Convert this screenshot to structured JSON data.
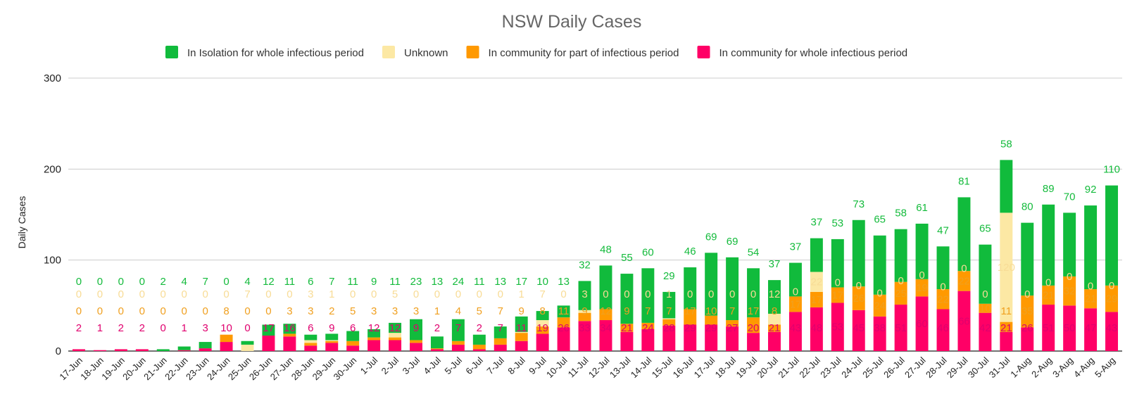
{
  "chart_data": {
    "type": "bar",
    "stacked": true,
    "title": "NSW Daily Cases",
    "xlabel": "",
    "ylabel": "Daily Cases",
    "ylim": [
      0,
      300
    ],
    "yticks": [
      0,
      100,
      200,
      300
    ],
    "grid": true,
    "legend_position": "top",
    "categories": [
      "17-Jun",
      "18-Jun",
      "19-Jun",
      "20-Jun",
      "21-Jun",
      "22-Jun",
      "23-Jun",
      "24-Jun",
      "25-Jun",
      "26-Jun",
      "27-Jun",
      "28-Jun",
      "29-Jun",
      "30-Jun",
      "1-Jul",
      "2-Jul",
      "3-Jul",
      "4-Jul",
      "5-Jul",
      "6-Jul",
      "7-Jul",
      "8-Jul",
      "9-Jul",
      "10-Jul",
      "11-Jul",
      "12-Jul",
      "13-Jul",
      "14-Jul",
      "15-Jul",
      "16-Jul",
      "17-Jul",
      "18-Jul",
      "19-Jul",
      "20-Jul",
      "21-Jul",
      "22-Jul",
      "23-Jul",
      "24-Jul",
      "25-Jul",
      "26-Jul",
      "27-Jul",
      "28-Jul",
      "29-Jul",
      "30-Jul",
      "31-Jul",
      "1-Aug",
      "2-Aug",
      "3-Aug",
      "4-Aug",
      "5-Aug"
    ],
    "series": [
      {
        "name": "In community for whole infectious period",
        "color": "#ff0066",
        "label_color": "#e0006e",
        "values": [
          2,
          1,
          2,
          2,
          0,
          1,
          3,
          10,
          0,
          17,
          16,
          6,
          9,
          6,
          12,
          12,
          9,
          2,
          7,
          2,
          7,
          11,
          19,
          26,
          33,
          34,
          21,
          24,
          28,
          29,
          29,
          27,
          20,
          21,
          43,
          48,
          53,
          45,
          38,
          51,
          60,
          46,
          66,
          42,
          21,
          26,
          51,
          50,
          47,
          43
        ]
      },
      {
        "name": "In community for part of infectious period",
        "color": "#ff9900",
        "label_color": "#f0a020",
        "values": [
          0,
          0,
          0,
          0,
          0,
          0,
          0,
          8,
          0,
          0,
          3,
          3,
          2,
          5,
          3,
          3,
          3,
          1,
          4,
          5,
          7,
          9,
          8,
          11,
          9,
          12,
          9,
          7,
          7,
          17,
          10,
          7,
          17,
          8,
          17,
          17,
          17,
          26,
          24,
          25,
          19,
          22,
          22,
          10,
          11,
          35,
          21,
          32,
          21,
          29
        ]
      },
      {
        "name": "Unknown",
        "color": "#fce8a4",
        "label_color": "#f8dc96",
        "values": [
          0,
          0,
          0,
          0,
          0,
          0,
          0,
          0,
          7,
          0,
          0,
          3,
          1,
          0,
          0,
          5,
          0,
          0,
          0,
          0,
          0,
          1,
          7,
          0,
          3,
          0,
          0,
          0,
          1,
          0,
          0,
          0,
          0,
          12,
          0,
          22,
          0,
          0,
          0,
          0,
          0,
          0,
          0,
          0,
          120,
          0,
          0,
          0,
          0,
          0
        ]
      },
      {
        "name": "In Isolation for whole infectious period",
        "color": "#11bb3c",
        "label_color": "#14bb3c",
        "values": [
          0,
          0,
          0,
          0,
          2,
          4,
          7,
          0,
          4,
          12,
          11,
          6,
          7,
          11,
          9,
          11,
          23,
          13,
          24,
          11,
          13,
          17,
          10,
          13,
          32,
          48,
          55,
          60,
          29,
          46,
          69,
          69,
          54,
          37,
          37,
          37,
          53,
          73,
          65,
          58,
          61,
          47,
          81,
          65,
          58,
          80,
          89,
          70,
          92,
          110
        ]
      }
    ],
    "legend_order": [
      3,
      2,
      1,
      0
    ]
  }
}
